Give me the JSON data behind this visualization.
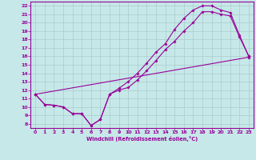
{
  "xlabel": "Windchill (Refroidissement éolien,°C)",
  "xlim": [
    -0.5,
    23.5
  ],
  "ylim": [
    7.5,
    22.5
  ],
  "xticks": [
    0,
    1,
    2,
    3,
    4,
    5,
    6,
    7,
    8,
    9,
    10,
    11,
    12,
    13,
    14,
    15,
    16,
    17,
    18,
    19,
    20,
    21,
    22,
    23
  ],
  "yticks": [
    8,
    9,
    10,
    11,
    12,
    13,
    14,
    15,
    16,
    17,
    18,
    19,
    20,
    21,
    22
  ],
  "bg_color": "#c6e8e8",
  "line_color": "#990099",
  "grid_color": "#aacccc",
  "line1_x": [
    0,
    1,
    2,
    3,
    4,
    5,
    6,
    7,
    8,
    9,
    10,
    11,
    12,
    13,
    14,
    15,
    16,
    17,
    18,
    19,
    20,
    21,
    22,
    23
  ],
  "line1_y": [
    11.5,
    10.3,
    10.2,
    10.0,
    9.2,
    9.2,
    7.8,
    8.5,
    11.5,
    12.2,
    13.0,
    14.0,
    15.2,
    16.5,
    17.5,
    19.2,
    20.5,
    21.5,
    22.0,
    22.0,
    21.5,
    21.2,
    18.5,
    16.0
  ],
  "line2_x": [
    0,
    1,
    2,
    3,
    4,
    5,
    6,
    7,
    8,
    9,
    10,
    11,
    12,
    13,
    14,
    15,
    16,
    17,
    18,
    19,
    20,
    21,
    22,
    23
  ],
  "line2_y": [
    11.5,
    10.3,
    10.2,
    10.0,
    9.2,
    9.2,
    7.8,
    8.5,
    11.5,
    12.0,
    12.3,
    13.2,
    14.3,
    15.5,
    16.8,
    17.8,
    19.0,
    20.0,
    21.3,
    21.3,
    21.0,
    20.8,
    18.3,
    16.0
  ],
  "line3_x": [
    0,
    23
  ],
  "line3_y": [
    11.5,
    15.9
  ],
  "marker": "D",
  "markersize": 1.8
}
